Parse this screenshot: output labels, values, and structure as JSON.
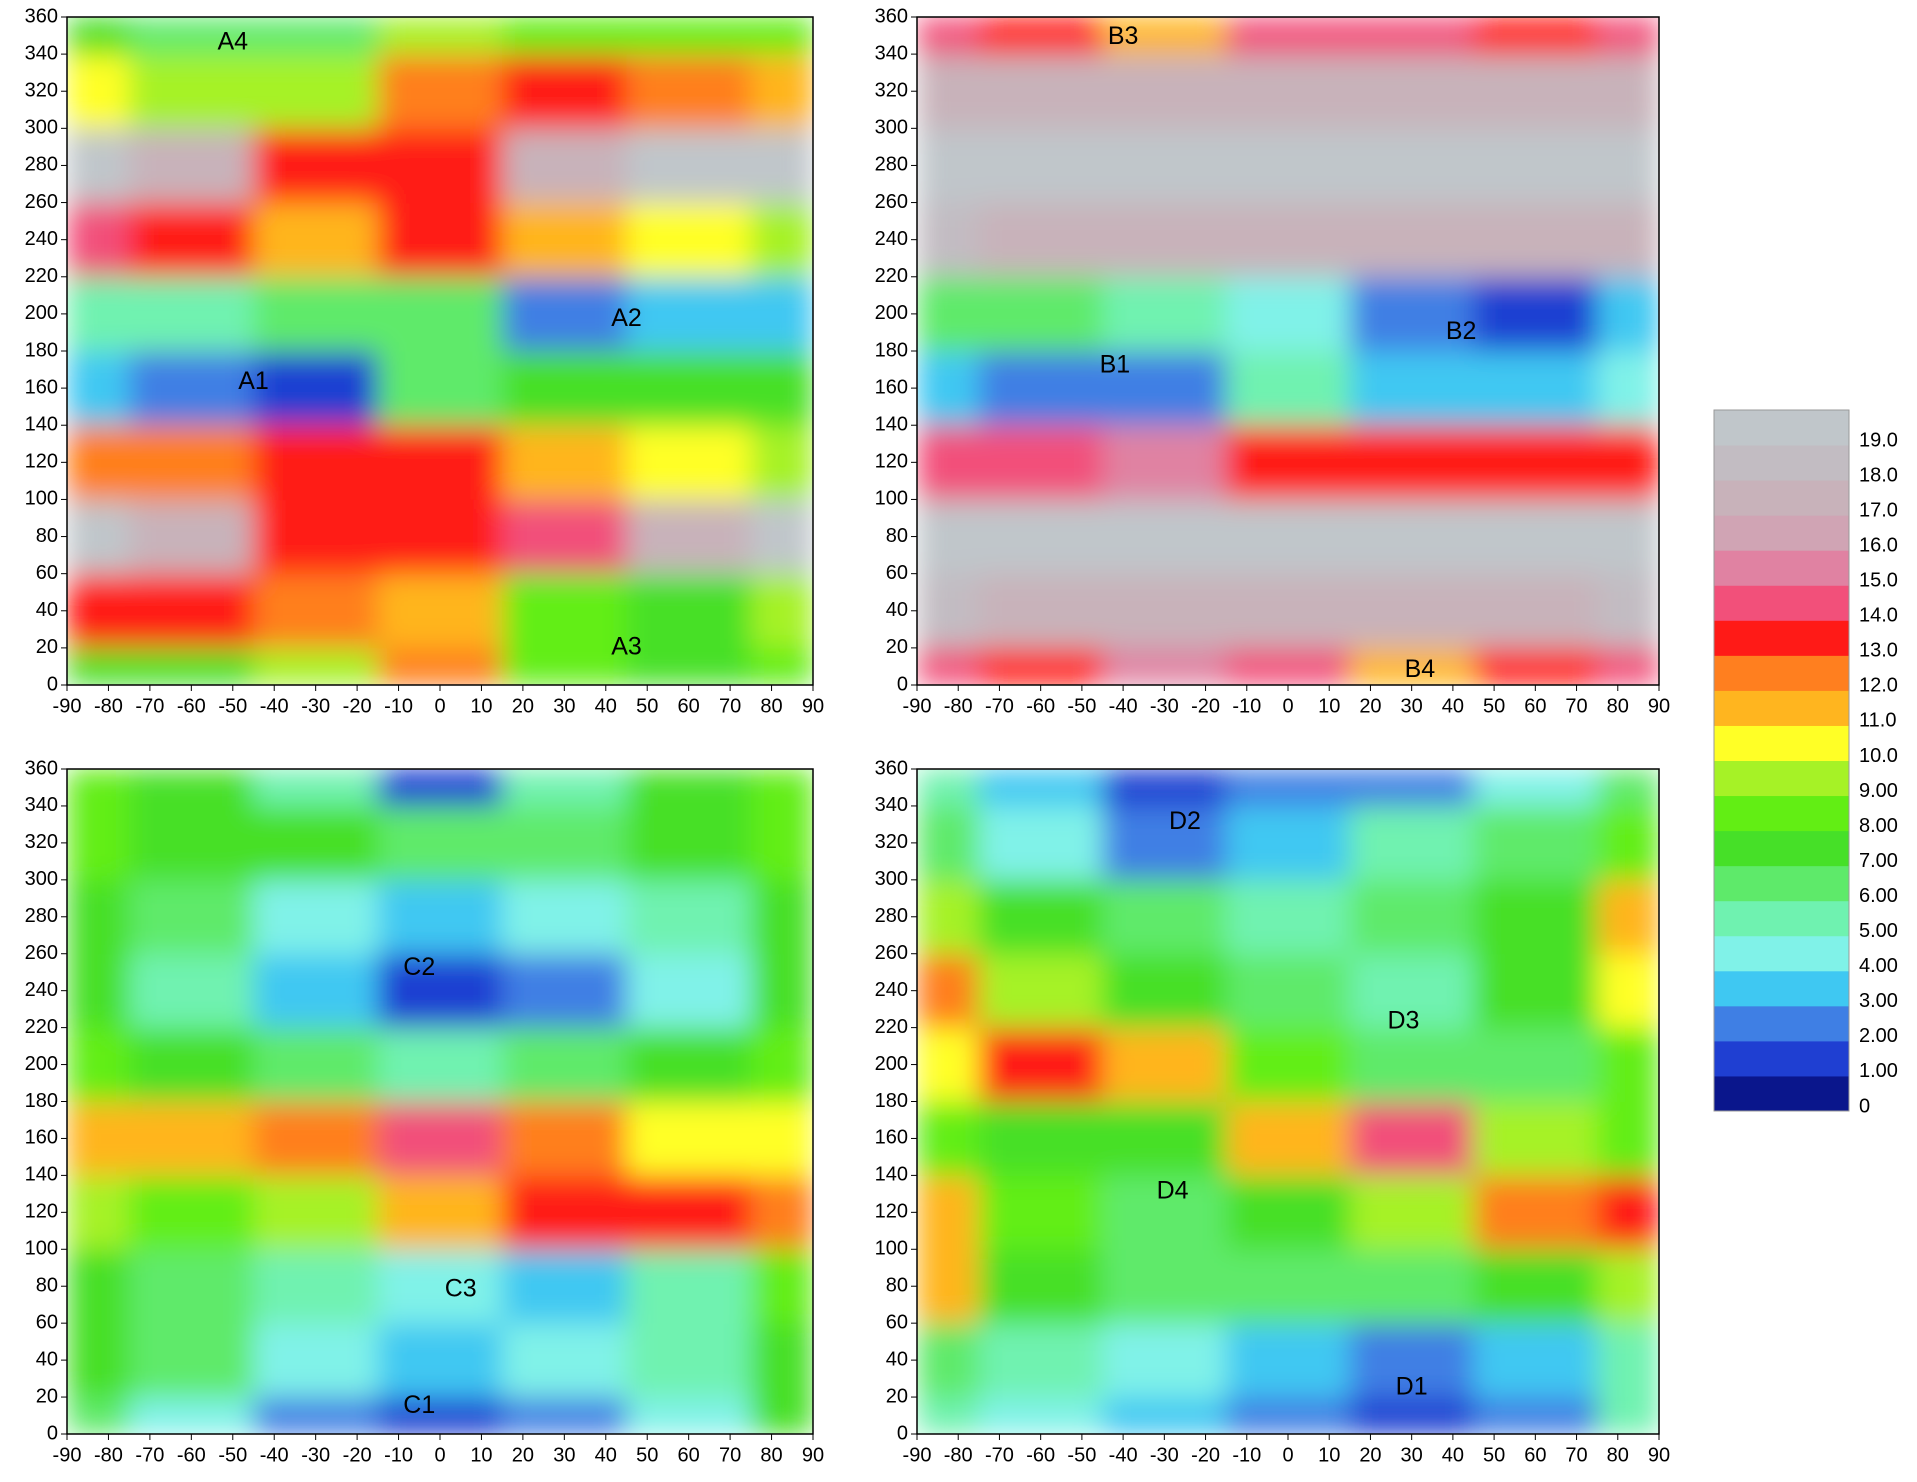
{
  "chart_data": [
    {
      "type": "contour",
      "x": [
        -90,
        -60,
        -30,
        0,
        30,
        60,
        90
      ],
      "y": [
        0,
        40,
        80,
        120,
        160,
        200,
        240,
        280,
        320,
        360
      ],
      "z": [
        [
          7,
          7,
          9,
          12,
          8,
          7,
          8
        ],
        [
          13,
          13,
          12,
          11,
          8,
          7,
          9
        ],
        [
          19,
          17,
          13,
          13,
          14,
          17,
          19
        ],
        [
          12,
          12,
          13,
          13,
          11,
          10,
          9
        ],
        [
          3,
          2,
          1,
          6,
          7,
          7,
          7
        ],
        [
          5,
          5,
          6,
          6,
          2,
          3,
          3
        ],
        [
          14,
          13,
          11,
          13,
          11,
          10,
          9
        ],
        [
          19,
          17,
          13,
          13,
          17,
          19,
          19
        ],
        [
          10,
          9,
          9,
          12,
          13,
          12,
          11
        ],
        [
          7,
          6,
          6,
          9,
          8,
          8,
          8
        ]
      ],
      "xlim": [
        -90,
        90
      ],
      "ylim": [
        0,
        360
      ],
      "xticks": [
        -90,
        -80,
        -70,
        -60,
        -50,
        -40,
        -30,
        -20,
        -10,
        0,
        10,
        20,
        30,
        40,
        50,
        60,
        70,
        80,
        90
      ],
      "yticks": [
        0,
        20,
        40,
        60,
        80,
        100,
        120,
        140,
        160,
        180,
        200,
        220,
        240,
        260,
        280,
        300,
        320,
        340,
        360
      ],
      "annotations": [
        {
          "text": "A1",
          "x": -45,
          "y": 163
        },
        {
          "text": "A2",
          "x": 45,
          "y": 197
        },
        {
          "text": "A3",
          "x": 45,
          "y": 20
        },
        {
          "text": "A4",
          "x": -50,
          "y": 346
        }
      ]
    },
    {
      "type": "contour",
      "x": [
        -90,
        -60,
        -30,
        0,
        30,
        60,
        90
      ],
      "y": [
        0,
        40,
        80,
        120,
        160,
        200,
        240,
        280,
        320,
        360
      ],
      "z": [
        [
          14,
          13,
          15,
          14,
          11,
          13,
          14
        ],
        [
          18,
          17,
          17,
          17,
          17,
          17,
          18
        ],
        [
          19,
          19,
          19,
          19,
          19,
          19,
          19
        ],
        [
          14,
          14,
          15,
          13,
          13,
          13,
          13
        ],
        [
          3,
          2,
          2,
          5,
          3,
          3,
          4
        ],
        [
          6,
          6,
          5,
          4,
          2,
          1,
          3
        ],
        [
          18,
          17,
          17,
          17,
          17,
          17,
          17
        ],
        [
          19,
          19,
          19,
          19,
          19,
          19,
          19
        ],
        [
          17,
          17,
          17,
          17,
          17,
          17,
          17
        ],
        [
          14,
          13,
          11,
          14,
          14,
          13,
          14
        ]
      ],
      "xlim": [
        -90,
        90
      ],
      "ylim": [
        0,
        360
      ],
      "xticks": [
        -90,
        -80,
        -70,
        -60,
        -50,
        -40,
        -30,
        -20,
        -10,
        0,
        10,
        20,
        30,
        40,
        50,
        60,
        70,
        80,
        90
      ],
      "yticks": [
        0,
        20,
        40,
        60,
        80,
        100,
        120,
        140,
        160,
        180,
        200,
        220,
        240,
        260,
        280,
        300,
        320,
        340,
        360
      ],
      "annotations": [
        {
          "text": "B1",
          "x": -42,
          "y": 172
        },
        {
          "text": "B2",
          "x": 42,
          "y": 190
        },
        {
          "text": "B3",
          "x": -40,
          "y": 349
        },
        {
          "text": "B4",
          "x": 32,
          "y": 8
        }
      ]
    },
    {
      "type": "contour",
      "x": [
        -90,
        -60,
        -30,
        0,
        30,
        60,
        90
      ],
      "y": [
        0,
        40,
        80,
        120,
        160,
        200,
        240,
        280,
        320,
        360
      ],
      "z": [
        [
          6,
          4,
          2,
          1,
          2,
          4,
          7
        ],
        [
          7,
          6,
          4,
          3,
          4,
          5,
          7
        ],
        [
          7,
          6,
          5,
          4,
          3,
          5,
          8
        ],
        [
          9,
          8,
          9,
          11,
          13,
          13,
          12
        ],
        [
          11,
          11,
          12,
          14,
          12,
          10,
          10
        ],
        [
          8,
          7,
          6,
          5,
          6,
          7,
          8
        ],
        [
          7,
          5,
          3,
          1,
          2,
          4,
          7
        ],
        [
          7,
          6,
          4,
          3,
          4,
          5,
          7
        ],
        [
          8,
          7,
          7,
          6,
          6,
          7,
          8
        ],
        [
          8,
          7,
          5,
          1,
          5,
          7,
          8
        ]
      ],
      "xlim": [
        -90,
        90
      ],
      "ylim": [
        0,
        360
      ],
      "xticks": [
        -90,
        -80,
        -70,
        -60,
        -50,
        -40,
        -30,
        -20,
        -10,
        0,
        10,
        20,
        30,
        40,
        50,
        60,
        70,
        80,
        90
      ],
      "yticks": [
        0,
        20,
        40,
        60,
        80,
        100,
        120,
        140,
        160,
        180,
        200,
        220,
        240,
        260,
        280,
        300,
        320,
        340,
        360
      ],
      "annotations": [
        {
          "text": "C1",
          "x": -5,
          "y": 15
        },
        {
          "text": "C2",
          "x": -5,
          "y": 252
        },
        {
          "text": "C3",
          "x": 5,
          "y": 78
        }
      ]
    },
    {
      "type": "contour",
      "x": [
        -90,
        -60,
        -30,
        0,
        30,
        60,
        90
      ],
      "y": [
        0,
        40,
        80,
        120,
        160,
        200,
        240,
        280,
        320,
        360
      ],
      "z": [
        [
          5,
          4,
          3,
          2,
          1,
          2,
          5
        ],
        [
          6,
          5,
          4,
          3,
          2,
          3,
          5
        ],
        [
          11,
          7,
          6,
          6,
          6,
          7,
          9
        ],
        [
          11,
          8,
          6,
          7,
          9,
          12,
          13
        ],
        [
          8,
          7,
          7,
          11,
          14,
          9,
          8
        ],
        [
          10,
          13,
          11,
          8,
          6,
          6,
          8
        ],
        [
          12,
          9,
          7,
          6,
          5,
          7,
          10
        ],
        [
          9,
          7,
          6,
          5,
          6,
          7,
          11
        ],
        [
          6,
          4,
          2,
          3,
          5,
          6,
          8
        ],
        [
          5,
          3,
          1,
          2,
          2,
          4,
          6
        ]
      ],
      "xlim": [
        -90,
        90
      ],
      "ylim": [
        0,
        360
      ],
      "xticks": [
        -90,
        -80,
        -70,
        -60,
        -50,
        -40,
        -30,
        -20,
        -10,
        0,
        10,
        20,
        30,
        40,
        50,
        60,
        70,
        80,
        90
      ],
      "yticks": [
        0,
        20,
        40,
        60,
        80,
        100,
        120,
        140,
        160,
        180,
        200,
        220,
        240,
        260,
        280,
        300,
        320,
        340,
        360
      ],
      "annotations": [
        {
          "text": "D1",
          "x": 30,
          "y": 25
        },
        {
          "text": "D2",
          "x": -25,
          "y": 331
        },
        {
          "text": "D3",
          "x": 28,
          "y": 223
        },
        {
          "text": "D4",
          "x": -28,
          "y": 131
        }
      ]
    }
  ],
  "colorbar": {
    "ticks": [
      0,
      {
        "value": 1,
        "label": "1.00"
      },
      {
        "value": 2,
        "label": "2.00"
      },
      {
        "value": 3,
        "label": "3.00"
      },
      {
        "value": 4,
        "label": "4.00"
      },
      {
        "value": 5,
        "label": "5.00"
      },
      {
        "value": 6,
        "label": "6.00"
      },
      {
        "value": 7,
        "label": "7.00"
      },
      {
        "value": 8,
        "label": "8.00"
      },
      {
        "value": 9,
        "label": "9.00"
      },
      {
        "value": 10,
        "label": "10.0"
      },
      {
        "value": 11,
        "label": "11.0"
      },
      {
        "value": 12,
        "label": "12.0"
      },
      {
        "value": 13,
        "label": "13.0"
      },
      {
        "value": 14,
        "label": "14.0"
      },
      {
        "value": 15,
        "label": "15.0"
      },
      {
        "value": 16,
        "label": "16.0"
      },
      {
        "value": 17,
        "label": "17.0"
      },
      {
        "value": 18,
        "label": "18.0"
      },
      {
        "value": 19,
        "label": "19.0"
      }
    ],
    "colors": [
      "#0a168c",
      "#1f3fd2",
      "#3f7fe4",
      "#3fc8f2",
      "#80f2e8",
      "#6ff2b0",
      "#5eea6a",
      "#46e028",
      "#62ee14",
      "#a6f226",
      "#ffff26",
      "#ffb51f",
      "#ff7f1f",
      "#ff1a17",
      "#f2507a",
      "#e082a2",
      "#d0a4b4",
      "#c8b2ba",
      "#c2bcc2",
      "#c0c6ca"
    ]
  }
}
